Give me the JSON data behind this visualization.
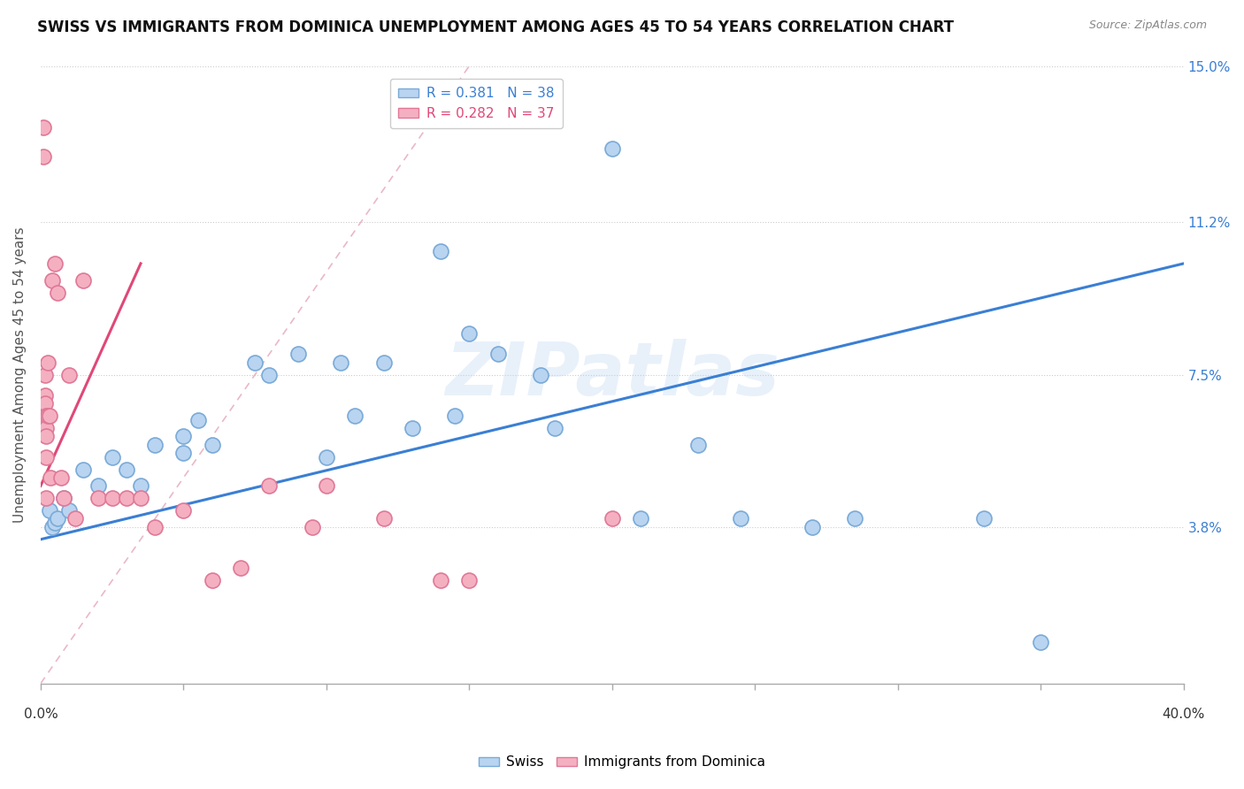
{
  "title": "SWISS VS IMMIGRANTS FROM DOMINICA UNEMPLOYMENT AMONG AGES 45 TO 54 YEARS CORRELATION CHART",
  "source": "Source: ZipAtlas.com",
  "ylabel": "Unemployment Among Ages 45 to 54 years",
  "xlim": [
    0.0,
    40.0
  ],
  "ylim": [
    0.0,
    15.0
  ],
  "yticks": [
    3.8,
    7.5,
    11.2,
    15.0
  ],
  "ytick_labels": [
    "3.8%",
    "7.5%",
    "11.2%",
    "15.0%"
  ],
  "watermark": "ZIPatlas",
  "swiss_color": "#b8d4f0",
  "swiss_edge_color": "#7aaad8",
  "dominica_color": "#f4b0c0",
  "dominica_edge_color": "#e07898",
  "swiss_R": 0.381,
  "swiss_N": 38,
  "dominica_R": 0.282,
  "dominica_N": 37,
  "swiss_line_color": "#3a7fd4",
  "dominica_line_color": "#e04878",
  "diag_line_color": "#e8b0c0",
  "swiss_line_x0": 0.0,
  "swiss_line_y0": 3.5,
  "swiss_line_x1": 40.0,
  "swiss_line_y1": 10.2,
  "dom_line_x0": 0.0,
  "dom_line_y0": 4.8,
  "dom_line_x1": 3.5,
  "dom_line_y1": 10.2,
  "diag_line_x0": 0.0,
  "diag_line_y0": 0.0,
  "diag_line_x1": 15.0,
  "diag_line_y1": 15.0,
  "swiss_x": [
    0.3,
    0.4,
    0.5,
    0.6,
    0.8,
    1.0,
    1.5,
    2.0,
    2.5,
    3.0,
    3.5,
    4.0,
    5.0,
    5.0,
    5.5,
    6.0,
    7.5,
    8.0,
    9.0,
    10.0,
    10.5,
    11.0,
    12.0,
    13.0,
    14.0,
    14.5,
    15.0,
    16.0,
    17.5,
    18.0,
    20.0,
    21.0,
    23.0,
    24.5,
    27.0,
    28.5,
    33.0,
    35.0
  ],
  "swiss_y": [
    4.2,
    3.8,
    3.9,
    4.0,
    4.5,
    4.2,
    5.2,
    4.8,
    5.5,
    5.2,
    4.8,
    5.8,
    6.0,
    5.6,
    6.4,
    5.8,
    7.8,
    7.5,
    8.0,
    5.5,
    7.8,
    6.5,
    7.8,
    6.2,
    10.5,
    6.5,
    8.5,
    8.0,
    7.5,
    6.2,
    13.0,
    4.0,
    5.8,
    4.0,
    3.8,
    4.0,
    4.0,
    1.0
  ],
  "dominica_x": [
    0.1,
    0.1,
    0.15,
    0.15,
    0.15,
    0.2,
    0.2,
    0.2,
    0.2,
    0.2,
    0.25,
    0.25,
    0.3,
    0.35,
    0.4,
    0.5,
    0.6,
    0.7,
    0.8,
    1.0,
    1.2,
    1.5,
    2.0,
    2.5,
    3.0,
    3.5,
    4.0,
    5.0,
    6.0,
    7.0,
    8.0,
    9.5,
    10.0,
    12.0,
    14.0,
    15.0,
    20.0
  ],
  "dominica_y": [
    13.5,
    12.8,
    7.5,
    7.0,
    6.8,
    6.5,
    6.2,
    6.0,
    5.5,
    4.5,
    7.8,
    6.5,
    6.5,
    5.0,
    9.8,
    10.2,
    9.5,
    5.0,
    4.5,
    7.5,
    4.0,
    9.8,
    4.5,
    4.5,
    4.5,
    4.5,
    3.8,
    4.2,
    2.5,
    2.8,
    4.8,
    3.8,
    4.8,
    4.0,
    2.5,
    2.5,
    4.0
  ],
  "background_color": "#ffffff",
  "title_fontsize": 12,
  "axis_label_fontsize": 11,
  "legend_fontsize": 11,
  "tick_fontsize": 11
}
